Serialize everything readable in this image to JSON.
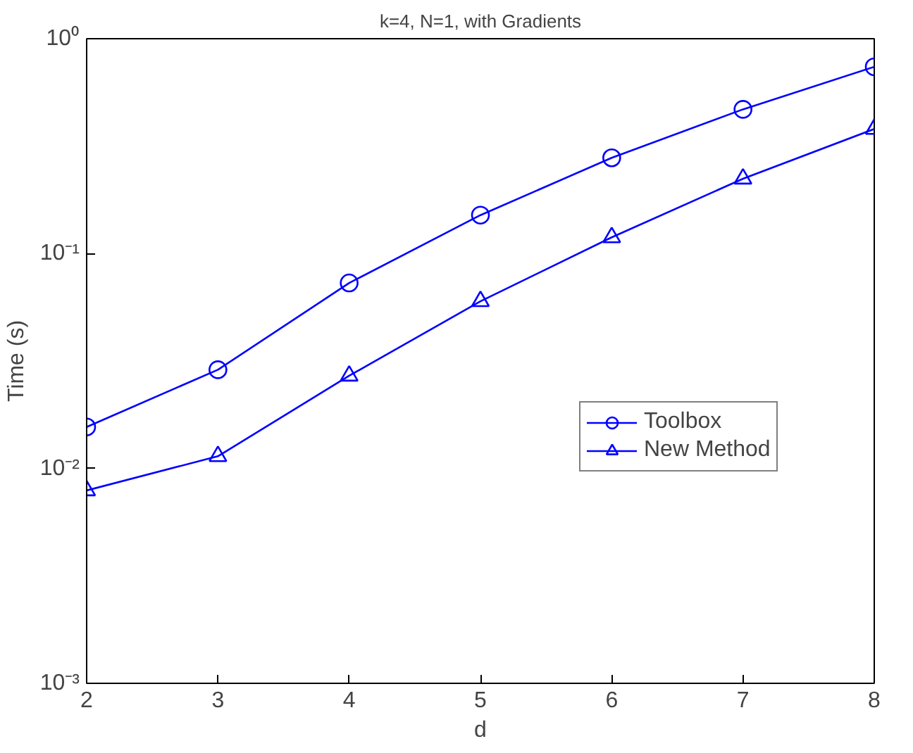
{
  "chart_data": {
    "type": "line",
    "title": "k=4, N=1, with Gradients",
    "xlabel": "d",
    "ylabel": "Time (s)",
    "x": [
      2,
      3,
      4,
      5,
      6,
      7,
      8
    ],
    "series": [
      {
        "name": "Toolbox",
        "color": "#0000ff",
        "marker": "circle",
        "values": [
          0.0156,
          0.0288,
          0.073,
          0.151,
          0.279,
          0.469,
          0.74
        ]
      },
      {
        "name": "New Method",
        "color": "#0000ff",
        "marker": "triangle",
        "values": [
          0.0079,
          0.0114,
          0.027,
          0.06,
          0.119,
          0.223,
          0.38
        ]
      }
    ],
    "log": "y",
    "xlim": [
      2,
      8
    ],
    "ylim": [
      0.001,
      1
    ],
    "xticks": [
      2,
      3,
      4,
      5,
      6,
      7,
      8
    ],
    "yticks": [
      {
        "value": 0.001,
        "label": "10⁻³"
      },
      {
        "value": 0.01,
        "label": "10⁻²"
      },
      {
        "value": 0.1,
        "label": "10⁻¹"
      },
      {
        "value": 1,
        "label": "10⁰"
      }
    ],
    "grid": false,
    "legend": "right",
    "line_style": "solid"
  }
}
